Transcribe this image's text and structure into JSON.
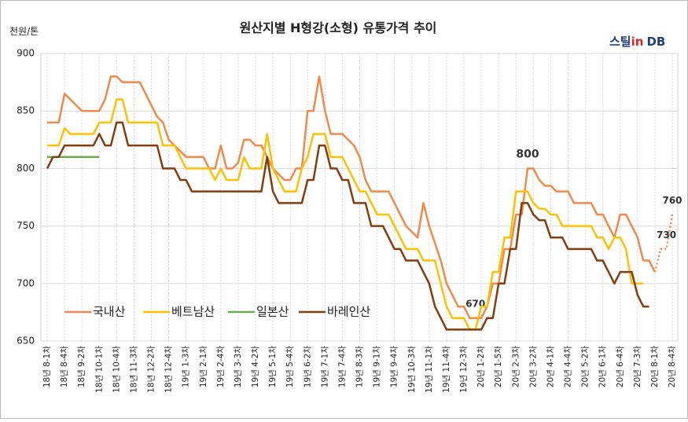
{
  "chart_data": {
    "type": "line",
    "title": "원산지별 H형강(소형) 유통가격 추이",
    "y_unit": "천원/톤",
    "logo": [
      "스틸",
      "in",
      "DB"
    ],
    "ylim": [
      650,
      900
    ],
    "yticks": [
      650,
      700,
      750,
      800,
      850,
      900
    ],
    "grid": true,
    "legend": "bottom-left",
    "categories": [
      "18년 8-1차",
      null,
      null,
      "18년 8-4차",
      null,
      null,
      "18년 9-2차",
      null,
      null,
      "18년 10-1차",
      null,
      null,
      "18년 10-4차",
      null,
      null,
      "18년 11-3차",
      null,
      null,
      "18년 12-2차",
      null,
      null,
      "18년 12-4차",
      null,
      null,
      "19년 1-3차",
      null,
      null,
      "19년 2-1차",
      null,
      null,
      "19년 2-4차",
      null,
      null,
      "19년 3-3차",
      null,
      null,
      "19년 4-2차",
      null,
      null,
      "19년 5-1차",
      null,
      null,
      "19년 5-4차",
      null,
      null,
      "19년 6-2차",
      null,
      null,
      "19년 7-1차",
      null,
      null,
      "19년 7-4차",
      null,
      null,
      "19년 8-3차",
      null,
      null,
      "19년 9-1차",
      null,
      null,
      "19년 9-4차",
      null,
      null,
      "19년 10-3차",
      null,
      null,
      "19년 11-1차",
      null,
      null,
      "19년 11-4차",
      null,
      null,
      "19년 12-3차",
      null,
      null,
      "20년 1-2차",
      null,
      null,
      "20년 1-5차",
      null,
      null,
      "20년 2-3차",
      null,
      null,
      "20년 3-2차",
      null,
      null,
      "20년 4-1차",
      null,
      null,
      "20년 4-4차",
      null,
      null,
      "20년 5-2차",
      null,
      null,
      "20년 6-1차",
      null,
      null,
      "20년 6-4차",
      null,
      null,
      "20년 7-3차",
      null,
      null,
      "20년 8-1차",
      null,
      null,
      "20년 8-4차"
    ],
    "series": [
      {
        "name": "국내산",
        "color": "#f0894a",
        "dash_from": 105,
        "values": [
          840,
          840,
          840,
          865,
          860,
          855,
          850,
          850,
          850,
          850,
          860,
          880,
          880,
          875,
          875,
          875,
          875,
          865,
          855,
          845,
          840,
          825,
          820,
          815,
          810,
          810,
          810,
          810,
          800,
          800,
          820,
          800,
          800,
          805,
          825,
          825,
          820,
          820,
          810,
          800,
          795,
          790,
          790,
          800,
          800,
          850,
          850,
          880,
          850,
          830,
          830,
          830,
          825,
          820,
          810,
          790,
          780,
          780,
          780,
          780,
          770,
          760,
          750,
          745,
          740,
          770,
          750,
          735,
          720,
          700,
          690,
          680,
          680,
          670,
          670,
          670,
          680,
          700,
          700,
          730,
          730,
          760,
          760,
          800,
          800,
          790,
          785,
          785,
          780,
          780,
          780,
          770,
          770,
          770,
          770,
          760,
          760,
          750,
          740,
          760,
          760,
          750,
          740,
          720,
          720,
          710,
          730,
          730,
          760
        ],
        "value_labels": [
          null,
          null,
          null,
          null,
          null,
          null,
          null,
          null,
          null,
          null,
          null,
          null,
          null,
          null,
          null,
          null,
          null,
          null,
          null,
          null,
          null,
          null,
          null,
          null,
          null,
          null,
          null,
          null,
          null,
          null,
          null,
          null,
          null,
          null,
          null,
          null,
          null,
          null,
          null,
          null,
          null,
          null,
          null,
          null,
          null,
          null,
          null,
          null,
          null,
          null,
          null,
          null,
          null,
          null,
          null,
          null,
          null,
          null,
          null,
          null,
          null,
          null,
          null,
          null,
          null,
          null,
          null,
          null,
          null,
          null,
          null,
          null,
          null,
          null,
          "670",
          null,
          null,
          null,
          null,
          null,
          null,
          null,
          null,
          "800",
          null,
          null,
          null,
          null,
          null,
          null,
          null,
          null,
          null,
          null,
          null,
          null,
          null,
          null,
          null,
          null,
          null,
          null,
          null,
          null,
          null,
          null,
          null,
          "730",
          "760"
        ]
      },
      {
        "name": "베트남산",
        "color": "#ffc000",
        "values": [
          820,
          820,
          820,
          835,
          830,
          830,
          830,
          830,
          830,
          840,
          840,
          840,
          860,
          860,
          840,
          840,
          840,
          840,
          840,
          840,
          820,
          820,
          820,
          810,
          800,
          800,
          800,
          800,
          800,
          790,
          800,
          790,
          790,
          790,
          810,
          800,
          800,
          800,
          830,
          800,
          790,
          780,
          780,
          780,
          800,
          810,
          830,
          830,
          830,
          810,
          810,
          810,
          800,
          790,
          780,
          780,
          770,
          760,
          760,
          760,
          750,
          740,
          730,
          730,
          730,
          720,
          720,
          720,
          700,
          680,
          670,
          670,
          670,
          660,
          660,
          680,
          680,
          710,
          710,
          740,
          740,
          780,
          780,
          780,
          770,
          765,
          765,
          760,
          760,
          750,
          750,
          750,
          750,
          750,
          750,
          740,
          740,
          730,
          740,
          740,
          730,
          700,
          700,
          700,
          null,
          null,
          null,
          null,
          null
        ]
      },
      {
        "name": "일본산",
        "color": "#70ad47",
        "values": [
          810,
          810,
          810,
          810,
          810,
          810,
          810,
          810,
          810,
          810,
          null,
          null,
          null,
          null,
          null,
          null,
          null,
          null,
          null,
          null,
          null,
          null,
          null,
          null,
          null,
          null,
          null,
          null,
          null,
          null,
          null,
          null,
          null,
          null,
          null,
          null,
          null,
          null,
          null,
          null,
          null,
          null,
          null,
          null,
          null,
          null,
          null,
          null,
          null,
          null,
          null,
          null,
          null,
          null,
          null,
          null,
          null,
          null,
          null,
          null,
          null,
          null,
          null,
          null,
          null,
          null,
          null,
          null,
          null,
          null,
          null,
          null,
          null,
          null,
          null,
          null,
          null,
          null,
          null,
          null,
          null,
          null,
          null,
          null,
          null,
          null,
          null,
          null,
          null,
          null,
          null,
          null,
          null,
          null,
          null,
          null,
          null,
          null,
          null,
          null,
          null,
          null,
          null,
          null,
          null,
          null,
          null,
          null,
          null
        ]
      },
      {
        "name": "바레인산",
        "color": "#843c0c",
        "values": [
          800,
          810,
          810,
          820,
          820,
          820,
          820,
          820,
          820,
          830,
          820,
          820,
          840,
          840,
          820,
          820,
          820,
          820,
          820,
          820,
          800,
          800,
          800,
          790,
          790,
          780,
          780,
          780,
          780,
          780,
          780,
          780,
          780,
          780,
          780,
          780,
          780,
          780,
          810,
          780,
          770,
          770,
          770,
          770,
          770,
          790,
          790,
          820,
          820,
          800,
          800,
          790,
          790,
          770,
          770,
          770,
          750,
          750,
          750,
          740,
          730,
          730,
          720,
          720,
          720,
          710,
          700,
          680,
          670,
          660,
          660,
          660,
          660,
          660,
          660,
          660,
          670,
          670,
          700,
          700,
          730,
          730,
          770,
          770,
          760,
          755,
          755,
          740,
          740,
          740,
          730,
          730,
          730,
          730,
          730,
          720,
          720,
          710,
          700,
          710,
          710,
          710,
          690,
          680,
          680,
          null,
          null,
          null,
          null
        ]
      }
    ]
  }
}
